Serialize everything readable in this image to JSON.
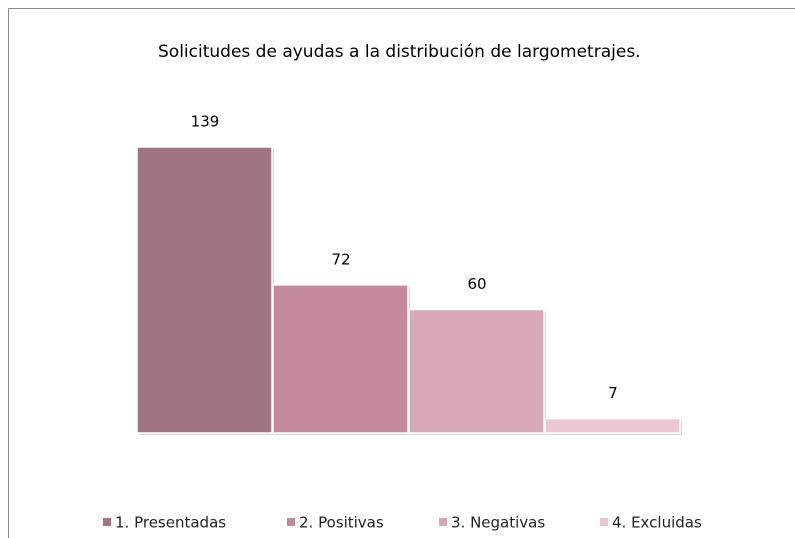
{
  "chart_data": {
    "type": "bar",
    "title": "Solicitudes de ayudas a la distribución de largometrajes.",
    "categories": [
      "1. Presentadas",
      "2. Positivas",
      "3. Negativas",
      "4. Excluidas"
    ],
    "values": [
      139,
      72,
      60,
      7
    ],
    "colors": [
      "#a07482",
      "#c38a9b",
      "#d8a8b6",
      "#eac6d0"
    ],
    "legend": "bottom"
  }
}
